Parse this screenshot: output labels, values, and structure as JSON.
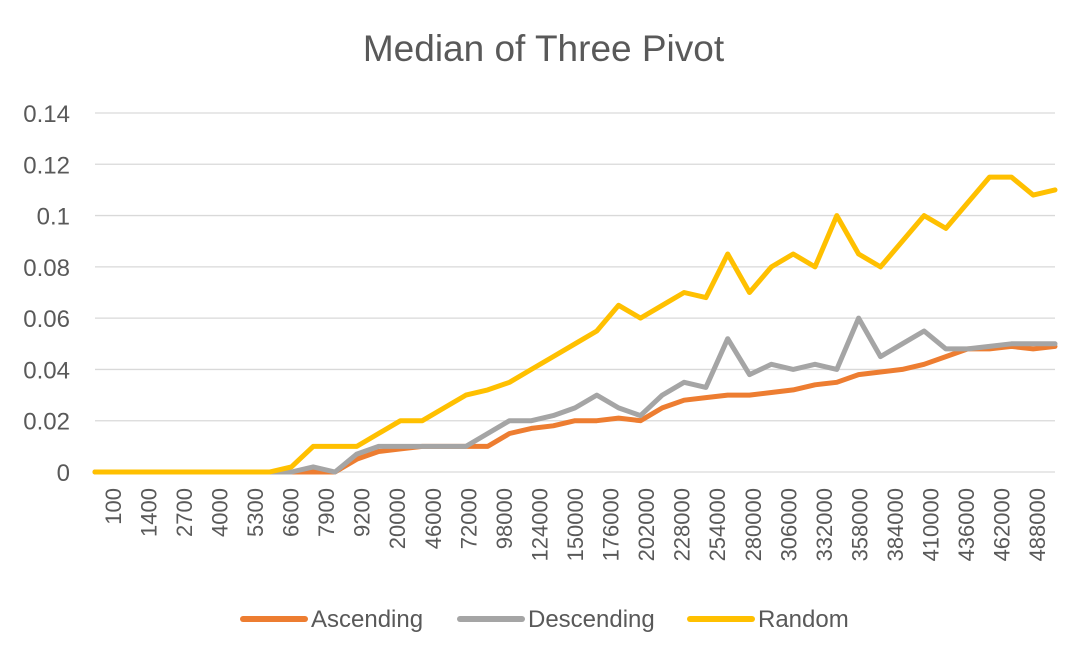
{
  "chart_data": {
    "type": "line",
    "title": "Median of Three Pivot",
    "xlabel": "",
    "ylabel": "",
    "ylim": [
      0,
      0.14
    ],
    "yticks": [
      "0",
      "0.02",
      "0.04",
      "0.06",
      "0.08",
      "0.1",
      "0.12",
      "0.14"
    ],
    "xtick_labels": [
      "100",
      "1400",
      "2700",
      "4000",
      "5300",
      "6600",
      "7900",
      "9200",
      "20000",
      "46000",
      "72000",
      "98000",
      "124000",
      "150000",
      "176000",
      "202000",
      "228000",
      "254000",
      "280000",
      "306000",
      "332000",
      "358000",
      "384000",
      "410000",
      "436000",
      "462000",
      "488000"
    ],
    "grid": true,
    "legend_position": "bottom",
    "x_samples": [
      "100",
      "1400",
      "2700",
      "4000",
      "5300",
      "6600",
      "7900",
      "9200",
      "20000",
      "46000",
      "59000",
      "72000",
      "85000",
      "98000",
      "111000",
      "124000",
      "137000",
      "150000",
      "163000",
      "176000",
      "189000",
      "202000",
      "215000",
      "228000",
      "241000",
      "254000",
      "267000",
      "280000",
      "293000",
      "306000",
      "319000",
      "332000",
      "345000",
      "358000",
      "371000",
      "384000",
      "397000",
      "410000",
      "423000",
      "436000",
      "449000",
      "462000",
      "475000",
      "488000",
      "500000"
    ],
    "series": [
      {
        "name": "Ascending",
        "color": "#ED7D31",
        "values": [
          0,
          0,
          0,
          0,
          0,
          0,
          0,
          0,
          0,
          0,
          0,
          0,
          0.005,
          0.008,
          0.009,
          0.01,
          0.01,
          0.01,
          0.01,
          0.015,
          0.017,
          0.018,
          0.02,
          0.02,
          0.021,
          0.02,
          0.025,
          0.028,
          0.029,
          0.03,
          0.03,
          0.031,
          0.032,
          0.034,
          0.035,
          0.038,
          0.039,
          0.04,
          0.042,
          0.045,
          0.048,
          0.048,
          0.049,
          0.048,
          0.049
        ]
      },
      {
        "name": "Descending",
        "color": "#A5A5A5",
        "values": [
          0,
          0,
          0,
          0,
          0,
          0,
          0,
          0,
          0,
          0,
          0.002,
          0,
          0.007,
          0.01,
          0.01,
          0.01,
          0.01,
          0.01,
          0.015,
          0.02,
          0.02,
          0.022,
          0.025,
          0.03,
          0.025,
          0.022,
          0.03,
          0.035,
          0.033,
          0.052,
          0.038,
          0.042,
          0.04,
          0.042,
          0.04,
          0.06,
          0.045,
          0.05,
          0.055,
          0.048,
          0.048,
          0.049,
          0.05,
          0.05,
          0.05
        ]
      },
      {
        "name": "Random",
        "color": "#FFC000",
        "values": [
          0,
          0,
          0,
          0,
          0,
          0,
          0,
          0,
          0,
          0.002,
          0.01,
          0.01,
          0.01,
          0.015,
          0.02,
          0.02,
          0.025,
          0.03,
          0.032,
          0.035,
          0.04,
          0.045,
          0.05,
          0.055,
          0.065,
          0.06,
          0.065,
          0.07,
          0.068,
          0.085,
          0.07,
          0.08,
          0.085,
          0.08,
          0.1,
          0.085,
          0.08,
          0.09,
          0.1,
          0.095,
          0.105,
          0.115,
          0.115,
          0.108,
          0.11
        ]
      }
    ]
  }
}
